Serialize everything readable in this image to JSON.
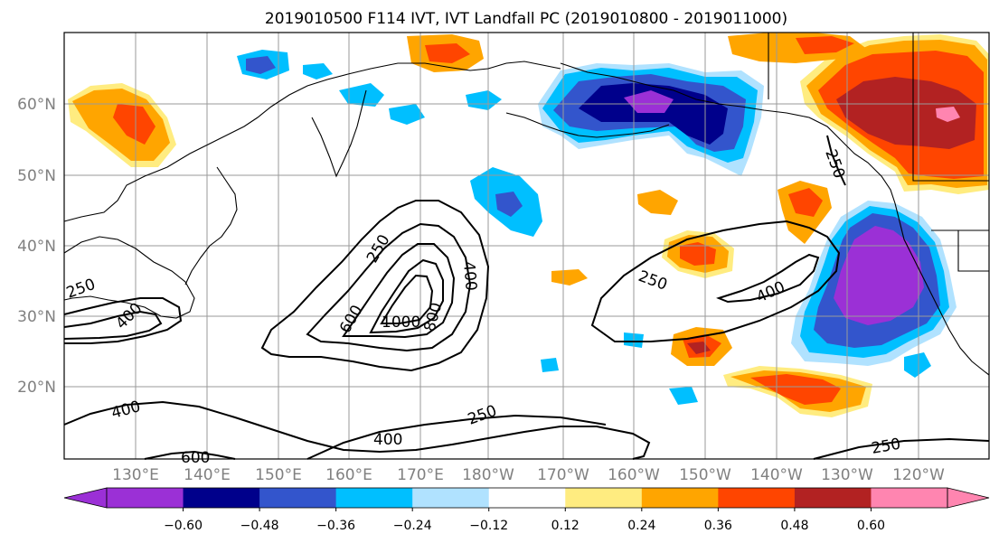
{
  "title": "2019010500 F114 IVT, IVT Landfall PC (2019010800 - 2019011000)",
  "lon_labels": [
    "130°E",
    "140°E",
    "150°E",
    "160°E",
    "170°E",
    "180°W",
    "170°W",
    "160°W",
    "150°W",
    "140°W",
    "130°W",
    "120°W"
  ],
  "lat_labels": [
    "60°N",
    "50°N",
    "40°N",
    "30°N",
    "20°N"
  ],
  "colorbar": {
    "colors": [
      "#9b30d6",
      "#00008b",
      "#3355cc",
      "#00bfff",
      "#b0e2ff",
      "#ffffff",
      "#ffec80",
      "#ffa500",
      "#ff4500",
      "#b22222",
      "#ff85b0"
    ],
    "tick_labels": [
      "−0.60",
      "−0.48",
      "−0.36",
      "−0.24",
      "−0.12",
      "0.12",
      "0.24",
      "0.36",
      "0.48",
      "0.60"
    ]
  },
  "contour_labels": [
    "250",
    "400",
    "600",
    "1000",
    "800",
    "400",
    "250",
    "250",
    "400",
    "250",
    "400",
    "400",
    "250",
    "600",
    "400",
    "250",
    "250"
  ],
  "shading": {
    "colors": {
      "pos1": "#ffec80",
      "pos2": "#ffa500",
      "pos3": "#ff4500",
      "pos4": "#b22222",
      "pos5": "#ff85b0",
      "neg1": "#b0e2ff",
      "neg2": "#00bfff",
      "neg3": "#3355cc",
      "neg4": "#00008b",
      "neg5": "#9b30d6"
    }
  }
}
